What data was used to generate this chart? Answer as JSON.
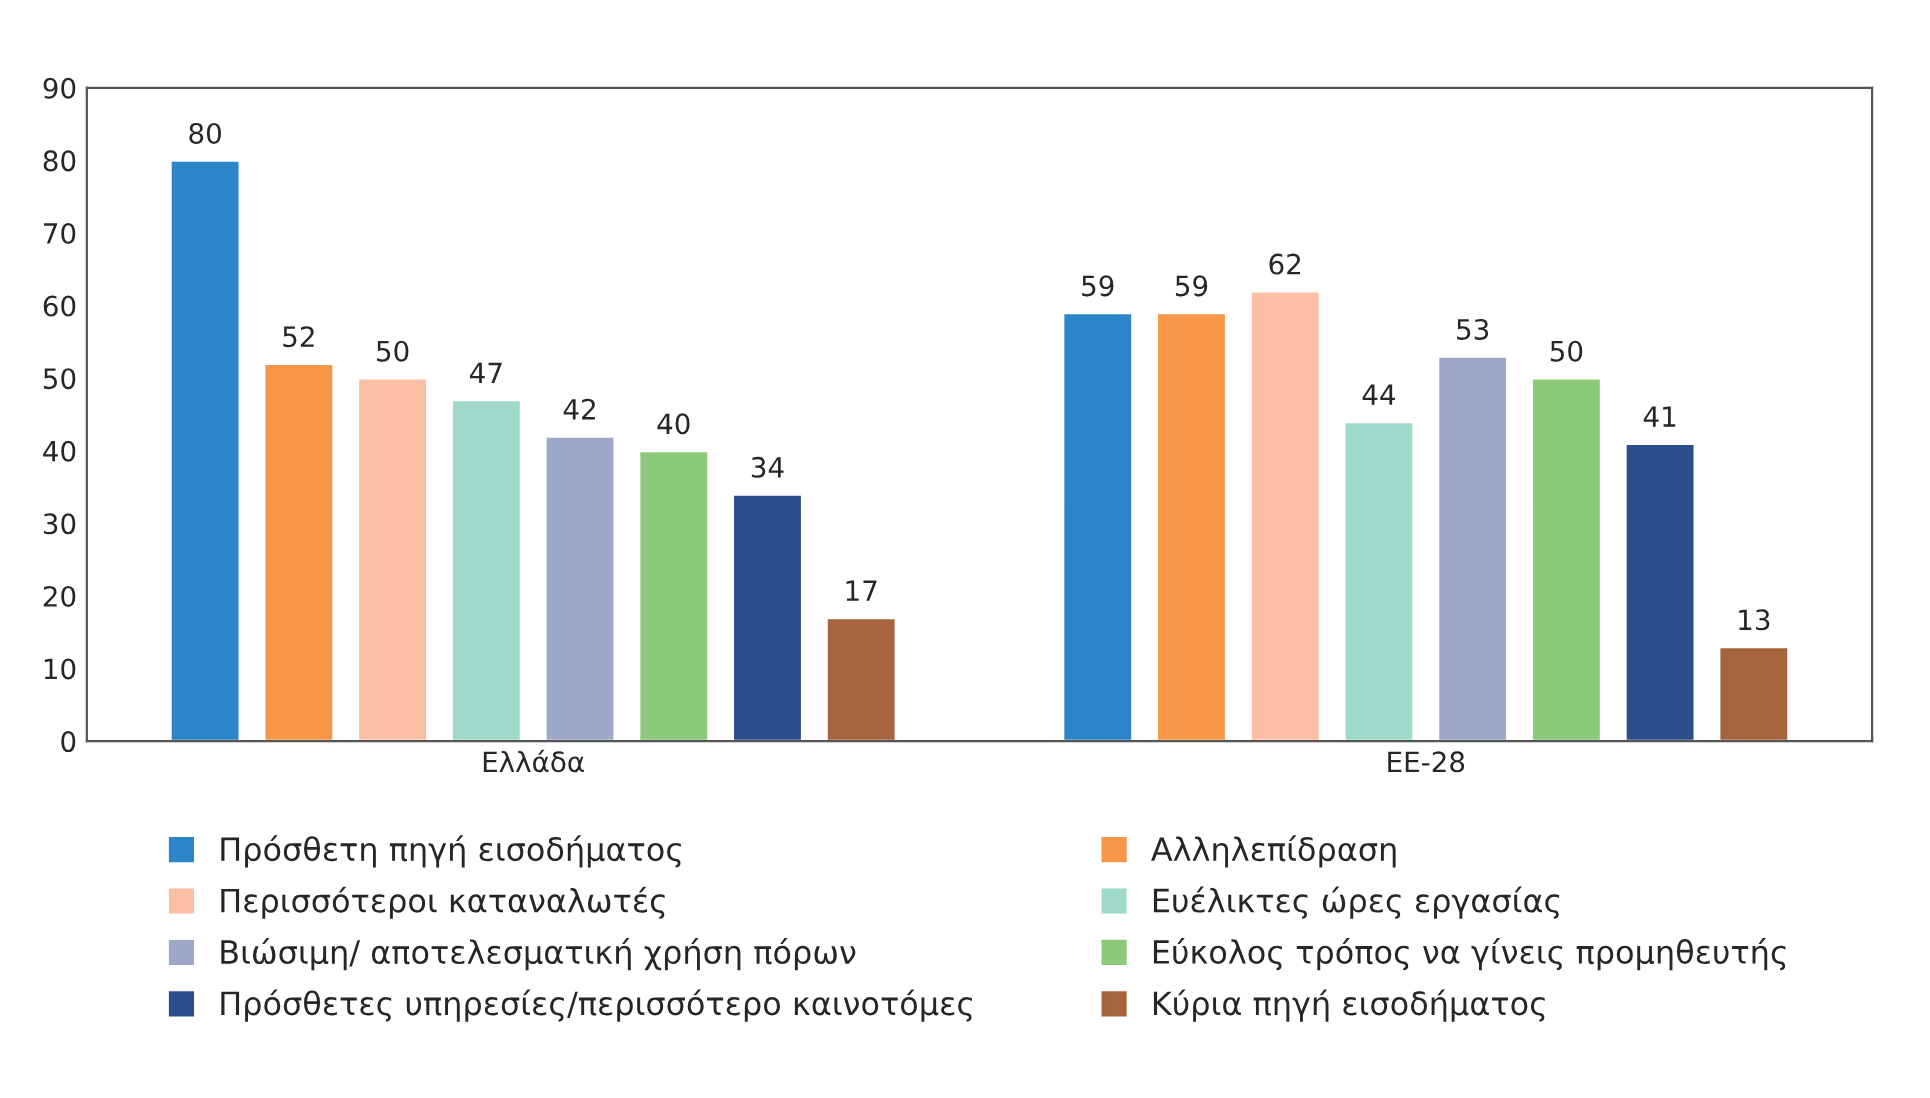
{
  "chart_data": {
    "type": "bar",
    "categories": [
      "Ελλάδα",
      "ΕΕ-28"
    ],
    "series": [
      {
        "name": "Πρόσθετη πηγή εισοδήματος",
        "color": "#2a86c8",
        "values": [
          80,
          59
        ]
      },
      {
        "name": "Αλληλεπίδραση",
        "color": "#f79646",
        "values": [
          52,
          59
        ]
      },
      {
        "name": "Περισσότεροι καταναλωτές",
        "color": "#fbbfa5",
        "values": [
          50,
          62
        ]
      },
      {
        "name": "Ευέλικτες ώρες εργασίας",
        "color": "#9fd9c9",
        "values": [
          47,
          44
        ]
      },
      {
        "name": "Βιώσιμη/ αποτελεσματική χρήση πόρων",
        "color": "#9ea8c9",
        "values": [
          42,
          53
        ]
      },
      {
        "name": "Εύκολος τρόπος να γίνεις προμηθευτής",
        "color": "#8cc97a",
        "values": [
          40,
          50
        ]
      },
      {
        "name": "Πρόσθετες υπηρεσίες/περισσότερο καινοτόμες",
        "color": "#2b4d8c",
        "values": [
          34,
          41
        ]
      },
      {
        "name": "Κύρια πηγή εισοδήματος",
        "color": "#a5643d",
        "values": [
          17,
          13
        ]
      }
    ],
    "ylim": [
      0,
      90
    ],
    "yticks": [
      0,
      10,
      20,
      30,
      40,
      50,
      60,
      70,
      80,
      90
    ],
    "data_labels": true,
    "grid": false,
    "legend": "bottom"
  }
}
